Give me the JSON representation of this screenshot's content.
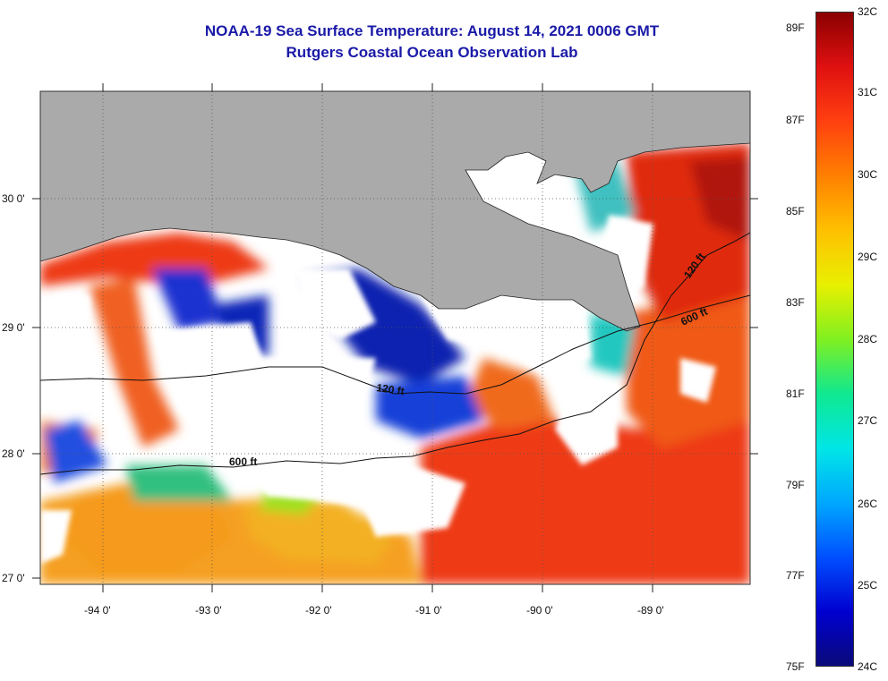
{
  "title": "NOAA-19 Sea Surface Temperature:  August 14, 2021 0006 GMT",
  "subtitle": "Rutgers Coastal Ocean Observation Lab",
  "map": {
    "longitude_labels": [
      "-94 0'",
      "-93 0'",
      "-92 0'",
      "-91 0'",
      "-90 0'",
      "-89 0'"
    ],
    "latitude_labels": [
      "30 0'",
      "29 0'",
      "28 0'",
      "27 0'"
    ],
    "contour_labels": [
      "120 ft",
      "600 ft",
      "120 ft",
      "600 ft"
    ],
    "colors": {
      "land": "#aaaaaa",
      "no_data": "#ffffff",
      "grid": "#555555"
    }
  },
  "colorbar": {
    "celsius_labels": [
      "32C",
      "31C",
      "30C",
      "29C",
      "28C",
      "27C",
      "26C",
      "25C",
      "24C"
    ],
    "fahrenheit_labels": [
      "89F",
      "87F",
      "85F",
      "83F",
      "81F",
      "79F",
      "77F",
      "75F"
    ],
    "range_celsius": [
      24,
      32
    ],
    "colors": [
      "#0a0a7a",
      "#0000d0",
      "#0050ff",
      "#00a8ff",
      "#00e6e6",
      "#10e890",
      "#80f020",
      "#e8f000",
      "#ffc000",
      "#ff8000",
      "#ff4010",
      "#e01010",
      "#8a0000"
    ]
  }
}
